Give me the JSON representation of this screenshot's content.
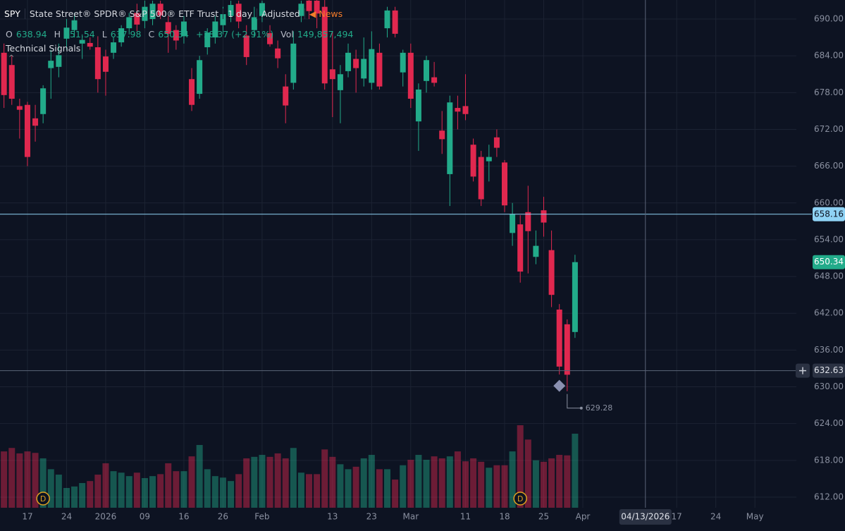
{
  "header": {
    "symbol": "SPY",
    "name": "State Street® SPDR® S&P 500® ETF Trust",
    "interval": "1 day",
    "adjustment": "Adjusted",
    "news": "News",
    "o_label": "O",
    "h_label": "H",
    "l_label": "L",
    "c_label": "C",
    "change": "+18.37 (+2.91%)",
    "vol_label": "Vol",
    "volume": "149,857,494",
    "signals": "Technical Signals",
    "collapse": "^"
  },
  "chart_data": {
    "type": "candlestick",
    "open": [
      684.5,
      682.5,
      675.8,
      676,
      673.8,
      674.5,
      682,
      682.2,
      686.8,
      688.2,
      686,
      686.1,
      685.4,
      683.9,
      684.5,
      686.2,
      688.5,
      691,
      689.7,
      690,
      692.5,
      689.5,
      688.2,
      687.2,
      680.2,
      677.8,
      685.4,
      687,
      689,
      690.5,
      692.5,
      687.3,
      688.2,
      690.5,
      687.7,
      685.2,
      679,
      679.6,
      690.5,
      693,
      693,
      692,
      681.8,
      678.4,
      681.5,
      683.5,
      680.3,
      679.6,
      684.5,
      688.5,
      691.4,
      681.3,
      684.5,
      673.3,
      679.9,
      680.5,
      671.8,
      664.7,
      675.5,
      675.8,
      669.5,
      667.5,
      666.8,
      670.7,
      666.6,
      655.1,
      656.5,
      658.5,
      651.2,
      658.8,
      652.3,
      642.6,
      640.2,
      638.94
    ],
    "high": [
      686,
      684,
      677,
      676.5,
      676,
      679.2,
      685,
      686,
      690,
      691,
      687.5,
      687,
      687.2,
      685,
      687,
      689,
      691,
      692.5,
      693,
      693,
      693,
      690.5,
      689,
      690.5,
      682,
      684,
      688.5,
      690.5,
      692,
      693,
      693,
      689,
      692,
      693,
      689,
      686.5,
      681,
      688,
      693,
      693.1,
      693.1,
      693.1,
      688,
      682.5,
      686,
      685,
      687,
      688,
      686,
      692,
      692,
      685,
      686,
      679.5,
      684,
      683,
      675,
      677.5,
      677.5,
      681,
      670.5,
      668.5,
      669.5,
      672,
      667,
      660,
      658,
      662.8,
      655.5,
      661,
      655.5,
      643.5,
      641,
      651.54
    ],
    "low": [
      675.5,
      676,
      670.5,
      666,
      670,
      673,
      677,
      680.5,
      685,
      687,
      683.5,
      685,
      678,
      677.5,
      683.5,
      685.5,
      687.5,
      688,
      688.5,
      689,
      690,
      684.5,
      685,
      686,
      675,
      677,
      684.2,
      686,
      687.5,
      689.5,
      688.5,
      682.5,
      687,
      689.5,
      685.5,
      682,
      673,
      678.5,
      689.5,
      690,
      688.5,
      678.5,
      674,
      673,
      680.5,
      678,
      679,
      678.5,
      678.5,
      687,
      687,
      679,
      675.5,
      668.5,
      678,
      679,
      668,
      659.5,
      672,
      673.5,
      663.5,
      659.5,
      663.5,
      667.5,
      658.5,
      653,
      647,
      648.5,
      650,
      654.5,
      643,
      632,
      629.28,
      637.98
    ],
    "close": [
      677.6,
      677,
      675.2,
      667.5,
      672.6,
      678.7,
      683.2,
      684.1,
      688.6,
      689.8,
      686.6,
      685.5,
      680.2,
      681.4,
      686.2,
      688.5,
      690.3,
      689.1,
      692,
      692.5,
      690.6,
      687.6,
      686.5,
      689.6,
      676,
      683.3,
      687.8,
      689.6,
      690.8,
      692.3,
      689.6,
      683.8,
      690.3,
      692.6,
      685.9,
      683.6,
      675.9,
      686,
      692.5,
      691.3,
      690.9,
      679.5,
      680.2,
      681,
      684.5,
      682,
      683.5,
      685.1,
      679,
      691.4,
      687.6,
      684.5,
      677,
      678.5,
      683.3,
      679.6,
      670.4,
      676.4,
      674.9,
      674.5,
      664.3,
      660.6,
      667.5,
      669,
      659.6,
      658.2,
      648.8,
      655.4,
      653,
      656.8,
      645,
      633.3,
      631.97,
      650.34
    ],
    "volume": [
      114000000,
      121000000,
      110000000,
      114000000,
      111000000,
      100000000,
      78000000,
      67000000,
      40000000,
      43000000,
      50000000,
      54000000,
      67000000,
      90000000,
      74000000,
      71000000,
      64000000,
      71000000,
      60000000,
      64000000,
      68000000,
      90000000,
      74000000,
      74000000,
      104000000,
      127000000,
      78000000,
      64000000,
      61000000,
      54000000,
      68000000,
      100000000,
      103000000,
      107000000,
      103000000,
      110000000,
      100000000,
      121000000,
      71000000,
      68000000,
      68000000,
      118000000,
      103000000,
      88000000,
      78000000,
      83000000,
      100000000,
      107000000,
      78000000,
      78000000,
      57000000,
      86000000,
      97000000,
      107000000,
      97000000,
      104000000,
      100000000,
      104000000,
      114000000,
      94000000,
      100000000,
      93000000,
      81000000,
      86000000,
      86000000,
      114000000,
      167000000,
      138000000,
      96000000,
      93000000,
      100000000,
      107000000,
      106000000,
      149857494
    ],
    "up_color": "#22ab8a",
    "down_color": "#e0284f",
    "ylim": [
      610.27,
      693.11
    ],
    "yticks": [
      {
        "value": 612,
        "label": "612.00"
      },
      {
        "value": 618,
        "label": "618.00"
      },
      {
        "value": 624,
        "label": "624.00"
      },
      {
        "value": 630,
        "label": "630.00"
      },
      {
        "value": 636,
        "label": "636.00"
      },
      {
        "value": 642,
        "label": "642.00"
      },
      {
        "value": 648,
        "label": "648.00"
      },
      {
        "value": 654,
        "label": "654.00"
      },
      {
        "value": 660,
        "label": "660.00"
      },
      {
        "value": 666,
        "label": "666.00"
      },
      {
        "value": 672,
        "label": "672.00"
      },
      {
        "value": 678,
        "label": "678.00"
      },
      {
        "value": 684,
        "label": "684.00"
      },
      {
        "value": 690,
        "label": "690.00"
      }
    ],
    "xlim": [
      -0.51,
      101.3
    ],
    "xticks": [
      {
        "value": 3,
        "label": "17"
      },
      {
        "value": 8,
        "label": "24"
      },
      {
        "value": 13,
        "label": "2026"
      },
      {
        "value": 18,
        "label": "09"
      },
      {
        "value": 23,
        "label": "16"
      },
      {
        "value": 28,
        "label": "26"
      },
      {
        "value": 33,
        "label": "Feb"
      },
      {
        "value": 42,
        "label": "13"
      },
      {
        "value": 47,
        "label": "23"
      },
      {
        "value": 52,
        "label": "Mar"
      },
      {
        "value": 59,
        "label": "11"
      },
      {
        "value": 64,
        "label": "18"
      },
      {
        "value": 69,
        "label": "25"
      },
      {
        "value": 74,
        "label": "Apr"
      },
      {
        "value": 86,
        "label": "17"
      },
      {
        "value": 91,
        "label": "24"
      },
      {
        "value": 96,
        "label": "May"
      }
    ],
    "grid": true,
    "price_line": 658.16,
    "crosshair": {
      "y": 632.63,
      "x": 82,
      "x_label": "04/13/2026"
    },
    "events": [
      {
        "label": "D",
        "x": 5
      },
      {
        "label": "D",
        "x": 66
      }
    ]
  }
}
